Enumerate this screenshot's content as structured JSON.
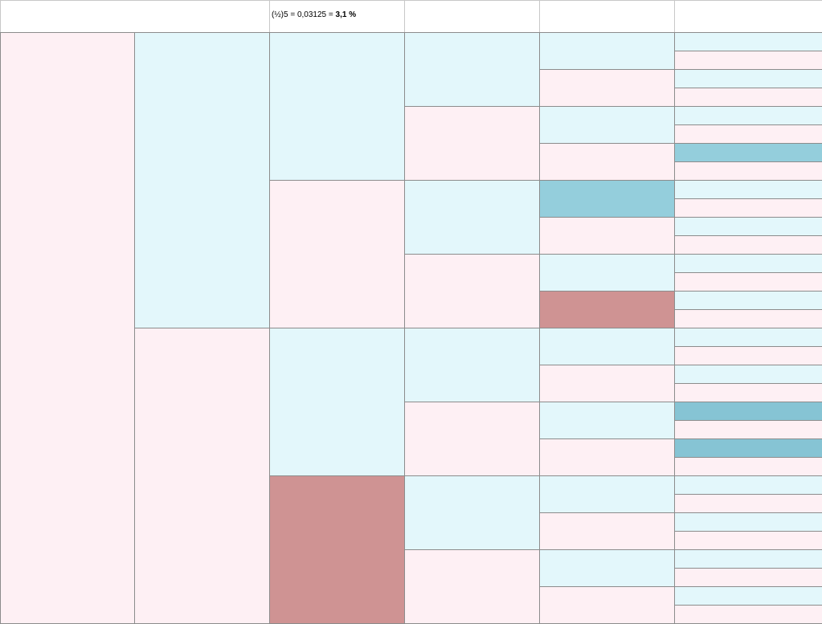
{
  "header": {
    "formula": "(½)5 = 0,03125 = ",
    "result": "3,1 %"
  },
  "colors": {
    "m": "#fef0f4",
    "f": "#e3f7fb",
    "affected_female": "#94cedc",
    "affected_female_dark": "#86c4d4",
    "affected_male": "#cf9393",
    "border": "#8c8c8c"
  },
  "tree": {
    "generations": 6,
    "columns": [
      [
        "m"
      ],
      [
        "f",
        "m"
      ],
      [
        "f",
        "m",
        "f",
        "M"
      ],
      [
        "f",
        "m",
        "f",
        "m",
        "f",
        "m",
        "f",
        "m"
      ],
      [
        "f",
        "m",
        "f",
        "m",
        "F",
        "m",
        "f",
        "M",
        "f",
        "m",
        "f",
        "m",
        "f",
        "m",
        "f",
        "m"
      ],
      [
        "f",
        "m",
        "f",
        "m",
        "f",
        "m",
        "F",
        "m",
        "f",
        "m",
        "f",
        "m",
        "f",
        "m",
        "f",
        "m",
        "f",
        "m",
        "f",
        "m",
        "F2",
        "m",
        "F2",
        "m",
        "f",
        "m",
        "f",
        "m",
        "f",
        "m",
        "f",
        "m"
      ]
    ]
  }
}
